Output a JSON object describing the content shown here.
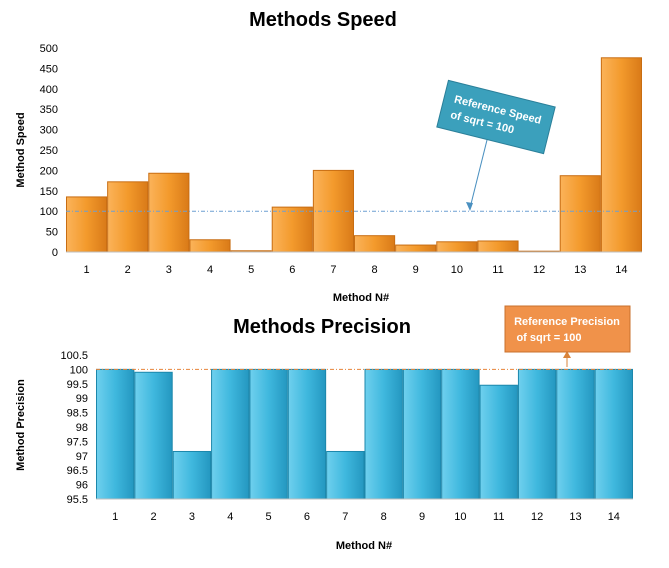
{
  "chart_data": [
    {
      "type": "bar",
      "title": "Methods Speed",
      "xlabel": "Method N#",
      "ylabel": "Method Speed",
      "categories": [
        "1",
        "2",
        "3",
        "4",
        "5",
        "6",
        "7",
        "8",
        "9",
        "10",
        "11",
        "12",
        "13",
        "14"
      ],
      "values": [
        135,
        172,
        193,
        30,
        3,
        110,
        200,
        40,
        17,
        25,
        27,
        0,
        187,
        476
      ],
      "ylim": [
        0,
        500
      ],
      "yticks": [
        "0",
        "50",
        "100",
        "150",
        "200",
        "250",
        "300",
        "350",
        "400",
        "450",
        "500"
      ],
      "reference": {
        "value": 100,
        "label": [
          "Reference Speed",
          "of sqrt = 100"
        ]
      },
      "grid": false,
      "colors": {
        "bar": "#f39a2c",
        "bar_dark": "#c86d12",
        "reference_line": "#6d9fd2",
        "callout": "#3ba0bc"
      }
    },
    {
      "type": "bar",
      "title": "Methods Precision",
      "xlabel": "Method N#",
      "ylabel": "Method Precision",
      "categories": [
        "1",
        "2",
        "3",
        "4",
        "5",
        "6",
        "7",
        "8",
        "9",
        "10",
        "11",
        "12",
        "13",
        "14"
      ],
      "values": [
        100,
        99.9,
        97.15,
        100,
        100,
        100,
        97.15,
        100,
        100,
        100,
        99.45,
        100,
        100,
        100
      ],
      "ylim": [
        95.5,
        100.5
      ],
      "yticks": [
        "95.5",
        "96",
        "96.5",
        "97",
        "97.5",
        "98",
        "98.5",
        "99",
        "99.5",
        "100",
        "100.5"
      ],
      "reference": {
        "value": 100,
        "label": [
          "Reference Precision",
          "of sqrt = 100"
        ]
      },
      "grid": false,
      "colors": {
        "bar": "#3fb8de",
        "bar_dark": "#1c87ab",
        "reference_line": "#e8843a",
        "callout": "#f0924a"
      }
    }
  ]
}
